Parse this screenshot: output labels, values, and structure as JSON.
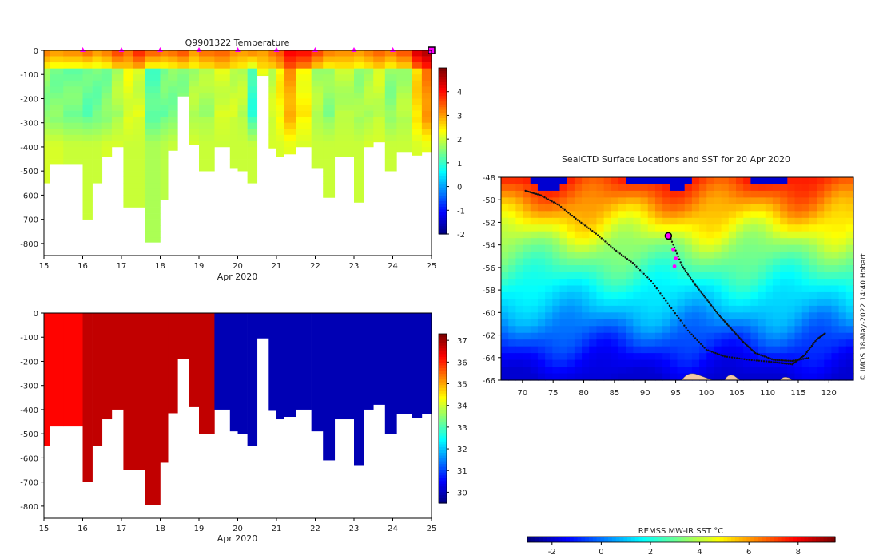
{
  "chart_data": [
    {
      "type": "heatmap",
      "title": "Q9901322  Temperature",
      "xlabel": "Apr 2020",
      "ylabel": "",
      "xlim": [
        15,
        25
      ],
      "ylim": [
        -850,
        0
      ],
      "x_ticks": [
        "15",
        "16",
        "17",
        "18",
        "19",
        "20",
        "21",
        "22",
        "23",
        "24",
        "25"
      ],
      "y_ticks": [
        "0",
        "-100",
        "-200",
        "-300",
        "-400",
        "-500",
        "-600",
        "-700",
        "-800"
      ],
      "colorbar": {
        "min": -2,
        "max": 5,
        "ticks": [
          "-2",
          "-1",
          "0",
          "1",
          "2",
          "3",
          "4"
        ]
      },
      "marker_days": [
        16,
        17,
        18,
        19,
        20,
        21,
        22,
        23,
        24
      ],
      "current_profile_day": 25,
      "profiles": [
        {
          "t0": 15.0,
          "t1": 15.15,
          "depth": 550,
          "surf": 3.2,
          "core": 1.6,
          "deep": 2.1
        },
        {
          "t0": 15.15,
          "t1": 15.5,
          "depth": 470,
          "surf": 3.0,
          "core": 1.5,
          "deep": 2.1
        },
        {
          "t0": 15.5,
          "t1": 16.0,
          "depth": 470,
          "surf": 3.1,
          "core": 1.4,
          "deep": 2.0
        },
        {
          "t0": 16.0,
          "t1": 16.25,
          "depth": 700,
          "surf": 3.3,
          "core": 1.3,
          "deep": 2.0
        },
        {
          "t0": 16.25,
          "t1": 16.5,
          "depth": 550,
          "surf": 3.0,
          "core": 1.4,
          "deep": 2.0
        },
        {
          "t0": 16.5,
          "t1": 16.75,
          "depth": 440,
          "surf": 3.2,
          "core": 1.5,
          "deep": 2.1
        },
        {
          "t0": 16.75,
          "t1": 17.05,
          "depth": 400,
          "surf": 3.6,
          "core": 1.8,
          "deep": 2.1
        },
        {
          "t0": 17.05,
          "t1": 17.3,
          "depth": 650,
          "surf": 3.3,
          "core": 2.2,
          "deep": 2.0
        },
        {
          "t0": 17.3,
          "t1": 17.6,
          "depth": 650,
          "surf": 3.8,
          "core": 2.1,
          "deep": 2.0
        },
        {
          "t0": 17.6,
          "t1": 18.0,
          "depth": 795,
          "surf": 3.4,
          "core": 1.2,
          "deep": 1.8
        },
        {
          "t0": 18.0,
          "t1": 18.2,
          "depth": 620,
          "surf": 3.2,
          "core": 1.4,
          "deep": 1.9
        },
        {
          "t0": 18.2,
          "t1": 18.45,
          "depth": 415,
          "surf": 3.3,
          "core": 1.5,
          "deep": 2.0
        },
        {
          "t0": 18.45,
          "t1": 18.75,
          "depth": 190,
          "surf": 3.5,
          "core": 1.6,
          "deep": 2.1
        },
        {
          "t0": 18.75,
          "t1": 19.0,
          "depth": 390,
          "surf": 3.0,
          "core": 1.8,
          "deep": 2.1
        },
        {
          "t0": 19.0,
          "t1": 19.4,
          "depth": 500,
          "surf": 3.3,
          "core": 1.8,
          "deep": 2.0
        },
        {
          "t0": 19.4,
          "t1": 19.8,
          "depth": 400,
          "surf": 3.4,
          "core": 2.1,
          "deep": 2.0
        },
        {
          "t0": 19.8,
          "t1": 20.0,
          "depth": 490,
          "surf": 3.1,
          "core": 2.0,
          "deep": 2.0
        },
        {
          "t0": 20.0,
          "t1": 20.25,
          "depth": 500,
          "surf": 3.0,
          "core": 1.9,
          "deep": 2.0
        },
        {
          "t0": 20.25,
          "t1": 20.5,
          "depth": 550,
          "surf": 3.1,
          "core": 1.0,
          "deep": 2.0
        },
        {
          "t0": 20.5,
          "t1": 20.8,
          "depth": 105,
          "surf": 3.0,
          "core": 2.2,
          "deep": 2.1
        },
        {
          "t0": 20.8,
          "t1": 21.0,
          "depth": 405,
          "surf": 3.3,
          "core": 2.0,
          "deep": 2.1
        },
        {
          "t0": 21.0,
          "t1": 21.2,
          "depth": 440,
          "surf": 3.5,
          "core": 2.4,
          "deep": 2.1
        },
        {
          "t0": 21.2,
          "t1": 21.5,
          "depth": 430,
          "surf": 4.1,
          "core": 3.0,
          "deep": 2.2
        },
        {
          "t0": 21.5,
          "t1": 21.9,
          "depth": 400,
          "surf": 4.0,
          "core": 2.4,
          "deep": 2.1
        },
        {
          "t0": 21.9,
          "t1": 22.2,
          "depth": 490,
          "surf": 3.6,
          "core": 1.8,
          "deep": 2.0
        },
        {
          "t0": 22.2,
          "t1": 22.5,
          "depth": 610,
          "surf": 3.2,
          "core": 1.6,
          "deep": 2.0
        },
        {
          "t0": 22.5,
          "t1": 23.0,
          "depth": 440,
          "surf": 3.1,
          "core": 1.9,
          "deep": 2.0
        },
        {
          "t0": 23.0,
          "t1": 23.25,
          "depth": 630,
          "surf": 3.0,
          "core": 1.7,
          "deep": 2.0
        },
        {
          "t0": 23.25,
          "t1": 23.5,
          "depth": 400,
          "surf": 3.2,
          "core": 1.8,
          "deep": 2.1
        },
        {
          "t0": 23.5,
          "t1": 23.8,
          "depth": 380,
          "surf": 3.4,
          "core": 2.0,
          "deep": 2.1
        },
        {
          "t0": 23.8,
          "t1": 24.1,
          "depth": 500,
          "surf": 3.2,
          "core": 1.6,
          "deep": 2.0
        },
        {
          "t0": 24.1,
          "t1": 24.5,
          "depth": 420,
          "surf": 3.5,
          "core": 1.8,
          "deep": 2.0
        },
        {
          "t0": 24.5,
          "t1": 24.75,
          "depth": 435,
          "surf": 4.3,
          "core": 2.6,
          "deep": 2.1
        },
        {
          "t0": 24.75,
          "t1": 25.0,
          "depth": 420,
          "surf": 4.6,
          "core": 3.2,
          "deep": 2.2
        }
      ]
    },
    {
      "type": "heatmap",
      "title": "",
      "xlabel": "Apr 2020",
      "ylabel": "",
      "xlim": [
        15,
        25
      ],
      "ylim": [
        -850,
        0
      ],
      "x_ticks": [
        "15",
        "16",
        "17",
        "18",
        "19",
        "20",
        "21",
        "22",
        "23",
        "24",
        "25"
      ],
      "y_ticks": [
        "0",
        "-100",
        "-200",
        "-300",
        "-400",
        "-500",
        "-600",
        "-700",
        "-800"
      ],
      "colorbar": {
        "min": 29.5,
        "max": 37.3,
        "ticks": [
          "30",
          "31",
          "32",
          "33",
          "34",
          "35",
          "36",
          "37"
        ]
      },
      "note": "Value sampled by profile; same column geometry as the temperature panel",
      "profile_values": [
        36.3,
        36.3,
        36.3,
        36.8,
        36.8,
        36.8,
        36.8,
        36.8,
        36.8,
        36.8,
        36.8,
        36.8,
        36.8,
        36.8,
        36.8,
        29.9,
        29.9,
        29.9,
        29.9,
        29.9,
        29.9,
        29.9,
        29.9,
        29.9,
        29.9,
        29.9,
        29.9,
        29.9,
        29.9,
        29.9,
        29.9,
        29.9,
        29.9,
        29.9
      ]
    },
    {
      "type": "heatmap",
      "title": "SealCTD Surface Locations and SST for 20 Apr 2020",
      "xlabel": "",
      "ylabel": "",
      "xlim": [
        66.5,
        124
      ],
      "ylim": [
        -66,
        -48
      ],
      "x_ticks": [
        "70",
        "75",
        "80",
        "85",
        "90",
        "95",
        "100",
        "105",
        "110",
        "115",
        "120"
      ],
      "y_ticks": [
        "-48",
        "-50",
        "-52",
        "-54",
        "-56",
        "-58",
        "-60",
        "-62",
        "-64",
        "-66"
      ],
      "colorbar": {
        "label": "REMSS MW-IR SST °C",
        "min": -3,
        "max": 9.5,
        "ticks": [
          "-2",
          "0",
          "2",
          "4",
          "6",
          "8"
        ]
      },
      "sst_by_latitude": [
        {
          "lat": -48,
          "sst": 7.6
        },
        {
          "lat": -50,
          "sst": 6.4
        },
        {
          "lat": -52,
          "sst": 5.0
        },
        {
          "lat": -54,
          "sst": 3.6
        },
        {
          "lat": -56,
          "sst": 2.6
        },
        {
          "lat": -58,
          "sst": 1.6
        },
        {
          "lat": -60,
          "sst": 0.8
        },
        {
          "lat": -62,
          "sst": -0.3
        },
        {
          "lat": -64,
          "sst": -1.4
        },
        {
          "lat": -66,
          "sst": -2.0
        }
      ],
      "track_outbound": [
        [
          70.5,
          -49.2
        ],
        [
          73,
          -49.6
        ],
        [
          76,
          -50.5
        ],
        [
          79,
          -51.8
        ],
        [
          82,
          -53.0
        ],
        [
          85,
          -54.4
        ],
        [
          88,
          -55.6
        ],
        [
          91,
          -57.2
        ],
        [
          94,
          -59.4
        ],
        [
          97,
          -61.6
        ],
        [
          100,
          -63.3
        ],
        [
          103,
          -63.9
        ],
        [
          107,
          -64.2
        ],
        [
          111,
          -64.4
        ],
        [
          114,
          -64.6
        ],
        [
          116,
          -63.8
        ],
        [
          118,
          -62.4
        ],
        [
          119.5,
          -61.8
        ]
      ],
      "track_return": [
        [
          94,
          -53.2
        ],
        [
          96,
          -55.8
        ],
        [
          98,
          -57.4
        ],
        [
          100,
          -58.8
        ],
        [
          102,
          -60.2
        ],
        [
          104,
          -61.4
        ],
        [
          106,
          -62.6
        ],
        [
          108,
          -63.6
        ],
        [
          111,
          -64.2
        ],
        [
          114,
          -64.3
        ],
        [
          117,
          -64.0
        ]
      ],
      "recent_positions": [
        [
          93.8,
          -53.2
        ],
        [
          94.6,
          -54.4
        ],
        [
          95.0,
          -55.2
        ],
        [
          94.8,
          -55.9
        ]
      ],
      "current_position": [
        93.8,
        -53.2
      ],
      "side_note": "© IMOS 18-May-2022 14:40 Hobart"
    }
  ],
  "colors": {
    "frame": "#000000",
    "marker": "#ff00ff",
    "land": "#f3c9a4"
  }
}
